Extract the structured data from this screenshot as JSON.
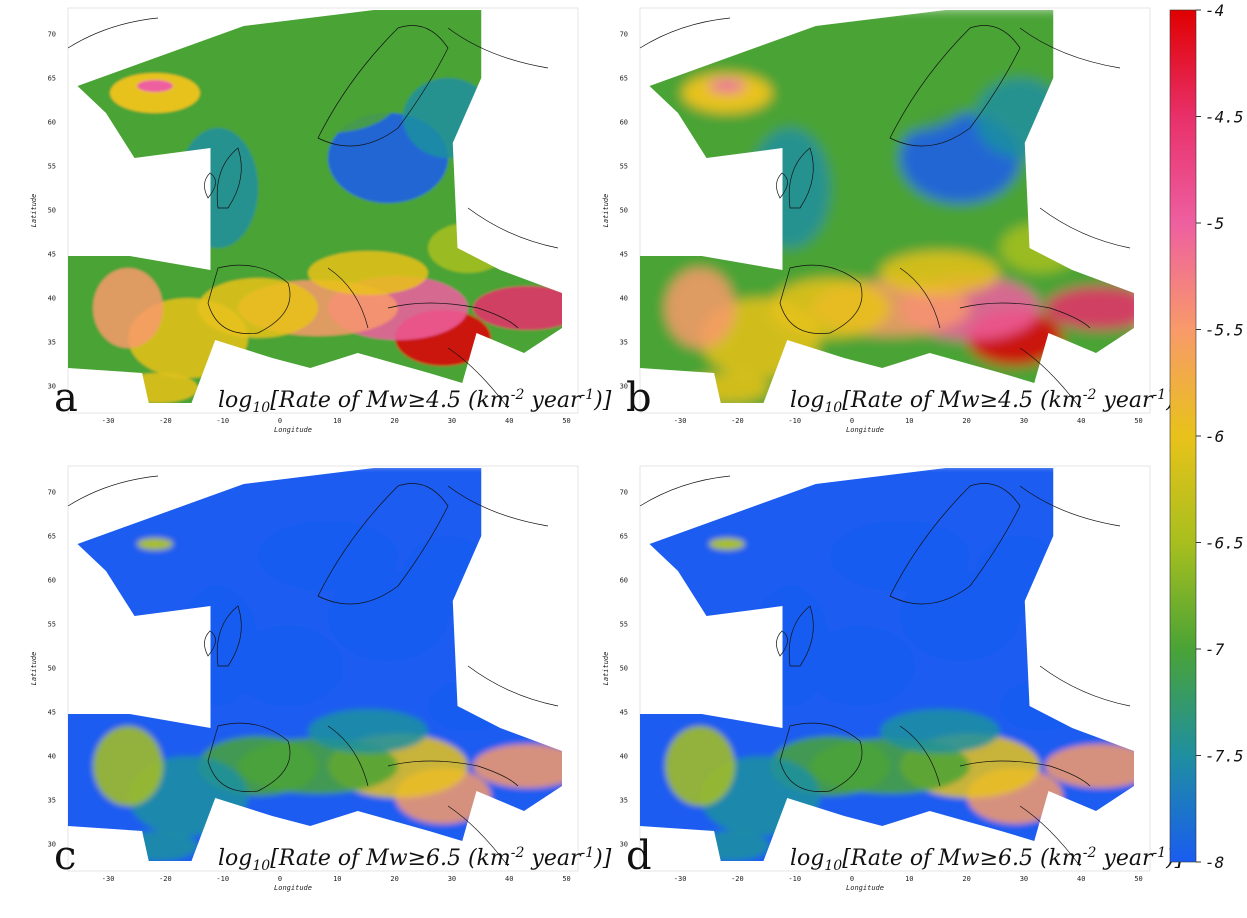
{
  "colorbar": {
    "ticks": [
      "-4",
      "-4.5",
      "-5",
      "-5.5",
      "-6",
      "-6.5",
      "-7",
      "-7.5",
      "-8"
    ],
    "stops": [
      "#e00000",
      "#e8306a",
      "#ee5fa0",
      "#f89a6a",
      "#e8c21a",
      "#a8bf1e",
      "#4aa336",
      "#1f8fa0",
      "#1a5cf0"
    ]
  },
  "axes": {
    "longitude_label": "Longitude",
    "latitude_label": "Latitude",
    "x_ticks": [
      "-30",
      "-20",
      "-10",
      "0",
      "10",
      "20",
      "30",
      "40",
      "50"
    ],
    "y_ticks": [
      "70",
      "65",
      "60",
      "55",
      "50",
      "45",
      "40",
      "35",
      "30"
    ]
  },
  "panels": [
    {
      "label": "a",
      "caption_prefix": "log",
      "caption_sub": "10",
      "caption_mid": "[Rate of Mw≥4.5 (km",
      "caption_sup": "-2",
      "caption_suffix": " year",
      "caption_sup2": "-1",
      "caption_end": ")]"
    },
    {
      "label": "b",
      "caption_prefix": "log",
      "caption_sub": "10",
      "caption_mid": "[Rate of Mw≥4.5 (km",
      "caption_sup": "-2",
      "caption_suffix": " year",
      "caption_sup2": "-1",
      "caption_end": ")]"
    },
    {
      "label": "c",
      "caption_prefix": "log",
      "caption_sub": "10",
      "caption_mid": "[Rate of Mw≥6.5 (km",
      "caption_sup": "-2",
      "caption_suffix": " year",
      "caption_sup2": "-1",
      "caption_end": ")]"
    },
    {
      "label": "d",
      "caption_prefix": "log",
      "caption_sub": "10",
      "caption_mid": "[Rate of Mw≥6.5 (km",
      "caption_sup": "-2",
      "caption_suffix": " year",
      "caption_sup2": "-1",
      "caption_end": ")]"
    }
  ]
}
